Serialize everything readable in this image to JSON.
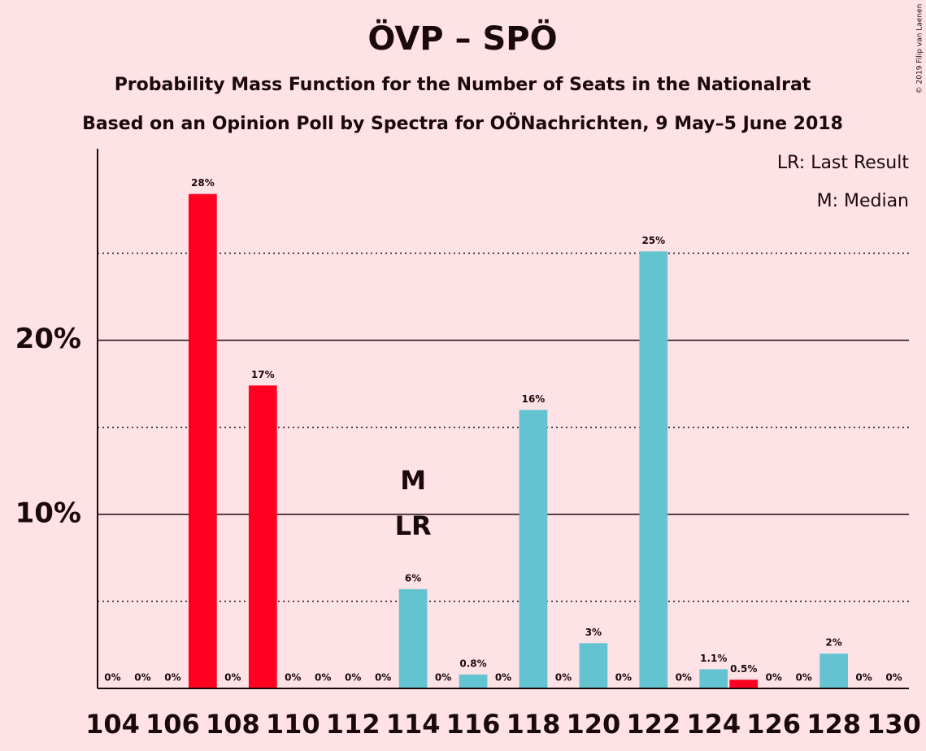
{
  "chart_data": {
    "type": "bar",
    "title": "ÖVP – SPÖ",
    "subtitle": "Probability Mass Function for the Number of Seats in the Nationalrat",
    "subtitle2": "Based on an Opinion Poll by Spectra for OÖNachrichten, 9 May–5 June 2018",
    "legend": [
      "LR: Last Result",
      "M: Median"
    ],
    "copyright": "© 2019 Filip van Laenen",
    "categories": [
      104,
      null,
      106,
      null,
      108,
      null,
      110,
      null,
      112,
      null,
      114,
      null,
      116,
      null,
      118,
      null,
      120,
      null,
      122,
      null,
      124,
      null,
      126,
      null,
      128,
      null,
      130
    ],
    "values": [
      0,
      0,
      0,
      28.4,
      0,
      17.4,
      0,
      0,
      0,
      0,
      5.7,
      0,
      0.8,
      0,
      16.0,
      0,
      2.6,
      0,
      25.1,
      0,
      1.1,
      0.5,
      0,
      0,
      2.0,
      0,
      0
    ],
    "value_labels": [
      "0%",
      "0%",
      "0%",
      "28%",
      "0%",
      "17%",
      "0%",
      "0%",
      "0%",
      "0%",
      "6%",
      "0%",
      "0.8%",
      "0%",
      "16%",
      "0%",
      "3%",
      "0%",
      "25%",
      "0%",
      "1.1%",
      "0.5%",
      "0%",
      "0%",
      "2%",
      "0%",
      "0%"
    ],
    "colors": [
      "#64c3d1",
      "#64c3d1",
      "#64c3d1",
      "#ff0020",
      "#64c3d1",
      "#ff0020",
      "#64c3d1",
      "#64c3d1",
      "#64c3d1",
      "#64c3d1",
      "#64c3d1",
      "#64c3d1",
      "#64c3d1",
      "#64c3d1",
      "#64c3d1",
      "#64c3d1",
      "#64c3d1",
      "#64c3d1",
      "#64c3d1",
      "#64c3d1",
      "#64c3d1",
      "#ff0020",
      "#64c3d1",
      "#64c3d1",
      "#64c3d1",
      "#64c3d1",
      "#64c3d1"
    ],
    "ylim": [
      0,
      31
    ],
    "yticks": [
      {
        "value": 10,
        "label": "10%"
      },
      {
        "value": 20,
        "label": "20%"
      }
    ],
    "minor_yticks": [
      5,
      15,
      25
    ],
    "annotations": [
      {
        "label": "M",
        "index": 10
      },
      {
        "label": "LR",
        "index": 10
      }
    ]
  }
}
